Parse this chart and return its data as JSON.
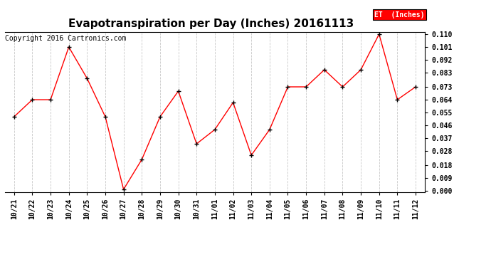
{
  "title": "Evapotranspiration per Day (Inches) 20161113",
  "copyright": "Copyright 2016 Cartronics.com",
  "legend_label": "ET  (Inches)",
  "dates": [
    "10/21",
    "10/22",
    "10/23",
    "10/24",
    "10/25",
    "10/26",
    "10/27",
    "10/28",
    "10/29",
    "10/30",
    "10/31",
    "11/01",
    "11/02",
    "11/03",
    "11/04",
    "11/05",
    "11/06",
    "11/07",
    "11/08",
    "11/09",
    "11/10",
    "11/11",
    "11/12"
  ],
  "values": [
    0.052,
    0.064,
    0.064,
    0.101,
    0.079,
    0.052,
    0.001,
    0.022,
    0.052,
    0.07,
    0.033,
    0.043,
    0.062,
    0.025,
    0.043,
    0.073,
    0.073,
    0.085,
    0.073,
    0.085,
    0.11,
    0.064,
    0.073
  ],
  "ylim": [
    -0.001,
    0.1115
  ],
  "yticks": [
    0.0,
    0.009,
    0.018,
    0.028,
    0.037,
    0.046,
    0.055,
    0.064,
    0.073,
    0.083,
    0.092,
    0.101,
    0.11
  ],
  "line_color": "red",
  "marker_color": "black",
  "background_color": "#ffffff",
  "grid_color": "#c8c8c8",
  "title_fontsize": 11,
  "copyright_fontsize": 7,
  "tick_fontsize": 7,
  "legend_bg": "red",
  "legend_fg": "white"
}
